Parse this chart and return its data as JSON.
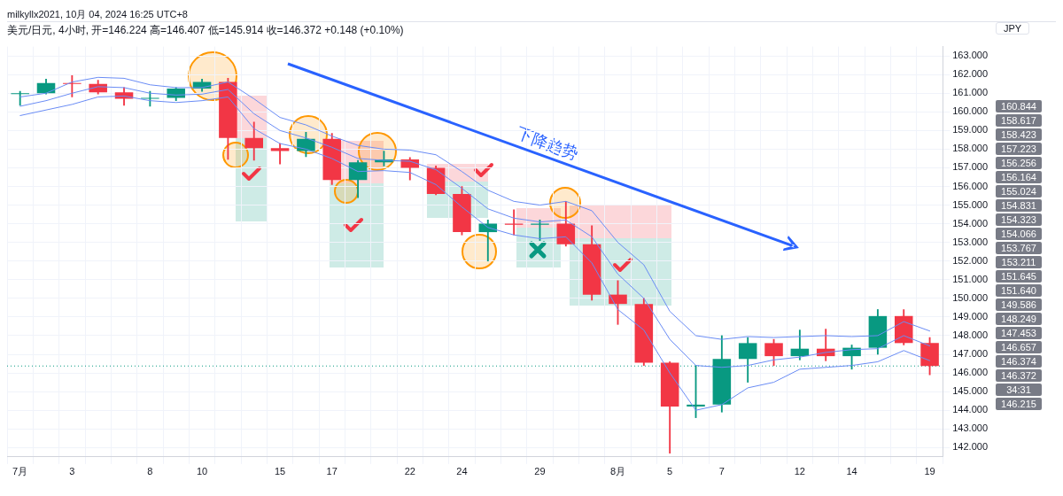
{
  "chart_data": {
    "type": "candlestick",
    "title": "美元/日元, 4小时, 开=146.224 高=146.407 低=145.914 收=146.372 +0.148 (+0.10%)",
    "categories": [
      "7月",
      null,
      "3",
      null,
      null,
      "8",
      null,
      "10",
      null,
      null,
      "15",
      null,
      "17",
      null,
      null,
      "22",
      null,
      "24",
      null,
      null,
      "29",
      null,
      null,
      "8月",
      null,
      "5",
      null,
      "7",
      null,
      null,
      "12",
      null,
      "14",
      null,
      null,
      "19"
    ],
    "ohlc": [
      [
        160.95,
        161.1,
        160.35,
        161.0
      ],
      [
        161.0,
        161.75,
        160.95,
        161.55
      ],
      [
        161.55,
        161.95,
        160.8,
        161.5
      ],
      [
        161.5,
        161.7,
        160.95,
        161.05
      ],
      [
        161.05,
        161.3,
        160.35,
        160.7
      ],
      [
        160.7,
        161.1,
        160.3,
        160.75
      ],
      [
        160.75,
        161.3,
        160.6,
        161.25
      ],
      [
        161.25,
        161.75,
        161.1,
        161.6
      ],
      [
        161.6,
        161.8,
        157.45,
        158.6
      ],
      [
        158.6,
        159.45,
        157.4,
        158.05
      ],
      [
        158.05,
        158.3,
        157.2,
        157.9
      ],
      [
        157.9,
        158.9,
        157.6,
        158.55
      ],
      [
        158.55,
        158.85,
        156.1,
        156.35
      ],
      [
        156.35,
        157.4,
        155.4,
        157.3
      ],
      [
        157.3,
        157.9,
        157.1,
        157.45
      ],
      [
        157.45,
        157.55,
        156.35,
        157.0
      ],
      [
        157.0,
        157.1,
        155.55,
        155.6
      ],
      [
        155.6,
        156.0,
        153.4,
        153.55
      ],
      [
        153.55,
        154.2,
        152.0,
        154.0
      ],
      [
        154.0,
        154.75,
        153.4,
        153.95
      ],
      [
        153.95,
        154.2,
        153.1,
        154.0
      ],
      [
        154.0,
        155.2,
        152.8,
        152.9
      ],
      [
        152.9,
        153.9,
        149.9,
        150.2
      ],
      [
        150.2,
        150.95,
        148.6,
        149.7
      ],
      [
        149.7,
        150.0,
        146.4,
        146.55
      ],
      [
        146.55,
        146.6,
        141.7,
        144.2
      ],
      [
        144.2,
        146.4,
        143.6,
        144.3
      ],
      [
        144.3,
        148.0,
        143.9,
        146.75
      ],
      [
        146.75,
        147.9,
        145.5,
        147.6
      ],
      [
        147.6,
        147.8,
        146.4,
        146.9
      ],
      [
        146.9,
        148.3,
        146.7,
        147.3
      ],
      [
        147.3,
        148.35,
        146.65,
        146.9
      ],
      [
        146.9,
        147.5,
        146.2,
        147.35
      ],
      [
        147.35,
        149.4,
        147.0,
        149.05
      ],
      [
        149.05,
        149.4,
        147.5,
        147.6
      ],
      [
        147.6,
        147.9,
        145.9,
        146.37
      ]
    ],
    "colors": [
      "#089981",
      "#089981",
      "#f23645",
      "#f23645",
      "#f23645",
      "#089981",
      "#089981",
      "#089981",
      "#f23645",
      "#f23645",
      "#f23645",
      "#089981",
      "#f23645",
      "#089981",
      "#089981",
      "#f23645",
      "#f23645",
      "#f23645",
      "#089981",
      "#f23645",
      "#089981",
      "#f23645",
      "#f23645",
      "#f23645",
      "#f23645",
      "#f23645",
      "#089981",
      "#089981",
      "#089981",
      "#f23645",
      "#089981",
      "#f23645",
      "#089981",
      "#089981",
      "#f23645",
      "#f23645"
    ],
    "series": [
      {
        "type": "line",
        "color": "#6a8cf5",
        "values": [
          160.8,
          161.0,
          161.6,
          161.85,
          161.8,
          161.45,
          161.3,
          161.3,
          161.6,
          160.7,
          159.7,
          159.3,
          158.7,
          158.2,
          158.0,
          157.95,
          157.7,
          156.8,
          155.8,
          155.2,
          155.0,
          155.2,
          154.7,
          153.0,
          151.8,
          149.3,
          148.0,
          147.8,
          147.95,
          147.9,
          147.95,
          148.0,
          147.95,
          148.0,
          148.75,
          148.25
        ]
      },
      {
        "type": "line",
        "color": "#6a8cf5",
        "values": [
          160.3,
          160.6,
          161.0,
          161.35,
          161.3,
          161.0,
          160.9,
          160.95,
          161.2,
          159.9,
          159.0,
          158.6,
          158.1,
          157.5,
          157.4,
          157.35,
          156.9,
          155.9,
          154.8,
          154.3,
          154.1,
          154.2,
          153.3,
          151.3,
          150.0,
          147.8,
          146.4,
          146.3,
          146.4,
          146.7,
          146.85,
          147.1,
          147.25,
          147.3,
          148.0,
          147.45
        ]
      },
      {
        "type": "line",
        "color": "#6a8cf5",
        "values": [
          159.8,
          160.1,
          160.4,
          160.8,
          160.85,
          160.6,
          160.5,
          160.6,
          160.8,
          159.1,
          158.3,
          158.0,
          157.5,
          156.8,
          156.85,
          156.75,
          156.1,
          154.9,
          153.8,
          153.4,
          153.2,
          153.3,
          151.9,
          149.4,
          148.3,
          146.0,
          144.0,
          144.3,
          145.2,
          145.5,
          146.2,
          146.3,
          146.4,
          146.6,
          147.2,
          146.66
        ]
      }
    ],
    "ylim": [
      141.5,
      163.5
    ],
    "yticks": [
      {
        "value": 142,
        "label": "142.000"
      },
      {
        "value": 143,
        "label": "143.000"
      },
      {
        "value": 144,
        "label": "144.000"
      },
      {
        "value": 145,
        "label": "145.000"
      },
      {
        "value": 146,
        "label": "146.000"
      },
      {
        "value": 147,
        "label": "147.000"
      },
      {
        "value": 148,
        "label": "148.000"
      },
      {
        "value": 149,
        "label": "149.000"
      },
      {
        "value": 150,
        "label": "150.000"
      },
      {
        "value": 151,
        "label": "151.000"
      },
      {
        "value": 152,
        "label": "152.000"
      },
      {
        "value": 153,
        "label": "153.000"
      },
      {
        "value": 154,
        "label": "154.000"
      },
      {
        "value": 155,
        "label": "155.000"
      },
      {
        "value": 156,
        "label": "156.000"
      },
      {
        "value": 157,
        "label": "157.000"
      },
      {
        "value": 158,
        "label": "158.000"
      },
      {
        "value": 159,
        "label": "159.000"
      },
      {
        "value": 160,
        "label": "160.000"
      },
      {
        "value": 161,
        "label": "161.000"
      },
      {
        "value": 162,
        "label": "162.000"
      },
      {
        "value": 163,
        "label": "163.000"
      }
    ],
    "grid": true,
    "ref_lines": [
      {
        "axis": "y",
        "value": 146.372,
        "color": "#089981",
        "line_style": "dotted"
      }
    ],
    "annotations": [
      "milkyllx2021, 10月 04, 2024 16:25 UTC+8",
      "JPY",
      "下降趋势",
      "160.844",
      "158.617",
      "158.423",
      "157.223",
      "156.256",
      "156.164",
      "155.024",
      "154.831",
      "154.323",
      "154.066",
      "153.767",
      "153.211",
      "151.645",
      "151.640",
      "149.586",
      "148.249",
      "147.453",
      "146.657",
      "146.374",
      "146.372",
      "34:31",
      "146.215"
    ]
  }
}
